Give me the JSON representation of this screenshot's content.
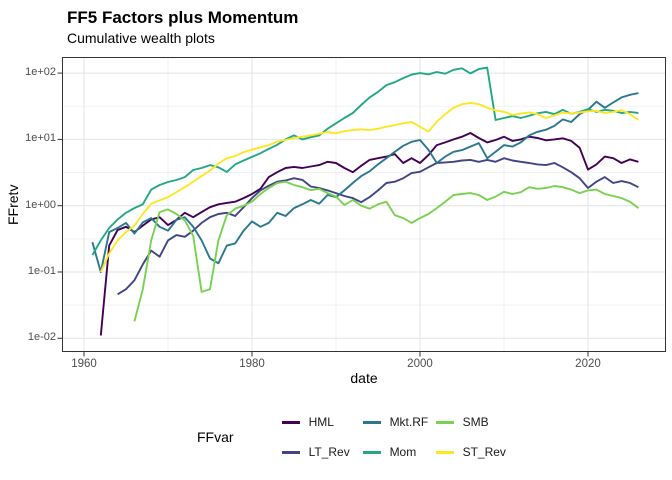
{
  "header": {
    "title": "FF5 Factors plus Momentum",
    "subtitle": "Cumulative wealth plots"
  },
  "legend": {
    "title": "FFvar",
    "rows": [
      [
        "HML",
        "Mkt.RF",
        "SMB"
      ],
      [
        "LT_Rev",
        "Mom",
        "ST_Rev"
      ]
    ]
  },
  "chart_data": {
    "type": "line",
    "title": "FF5 Factors plus Momentum",
    "subtitle": "Cumulative wealth plots",
    "xlabel": "date",
    "ylabel": "FFretv",
    "y_scale_type": "log10",
    "grid": {
      "major_color": "#e4e4e4",
      "minor_color": "#f2f2f2"
    },
    "panel_border_color": "#333333",
    "tick_color": "#333333",
    "xlim": [
      1957.38,
      2029.29
    ],
    "ylim_exp": [
      -2.207,
      2.243
    ],
    "x_ticks": [
      {
        "label": "1960",
        "year": 1960
      },
      {
        "label": "1980",
        "year": 1980
      },
      {
        "label": "2000",
        "year": 2000
      },
      {
        "label": "2020",
        "year": 2020
      }
    ],
    "x_minor": [
      1970,
      1990,
      2010
    ],
    "y_ticks": [
      {
        "label": "1e-02",
        "exp": -2
      },
      {
        "label": "1e-01",
        "exp": -1
      },
      {
        "label": "1e+00",
        "exp": 0
      },
      {
        "label": "1e+01",
        "exp": 1
      },
      {
        "label": "1e+02",
        "exp": 2
      }
    ],
    "y_minor_exp": [
      -1.5,
      -0.5,
      0.5,
      1.5
    ],
    "series": [
      {
        "name": "HML",
        "color": "#440154",
        "start_year": 1962,
        "values": [
          0.011,
          0.25,
          0.43,
          0.48,
          0.4,
          0.5,
          0.62,
          0.67,
          0.51,
          0.61,
          0.78,
          0.67,
          0.8,
          0.95,
          1.05,
          1.1,
          1.15,
          1.3,
          1.5,
          1.8,
          2.7,
          3.2,
          3.7,
          3.85,
          3.7,
          3.9,
          4.1,
          4.6,
          4.4,
          3.7,
          3.2,
          4.0,
          4.9,
          5.2,
          5.5,
          6.0,
          4.4,
          5.2,
          4.4,
          5.8,
          8.2,
          9.0,
          10.0,
          11.0,
          12.5,
          10.5,
          9.0,
          9.8,
          11.0,
          9.5,
          10.0,
          11.0,
          10.5,
          9.7,
          10.0,
          10.4,
          9.5,
          7.5,
          3.5,
          4.2,
          5.5,
          5.2,
          4.4,
          5.0,
          4.6
        ]
      },
      {
        "name": "LT_Rev",
        "color": "#414487",
        "start_year": 1964,
        "values": [
          0.046,
          0.055,
          0.075,
          0.13,
          0.21,
          0.17,
          0.3,
          0.36,
          0.34,
          0.42,
          0.55,
          0.67,
          0.75,
          0.78,
          0.7,
          0.95,
          1.3,
          1.7,
          2.0,
          2.3,
          2.4,
          2.6,
          2.45,
          1.95,
          1.85,
          1.7,
          1.55,
          1.4,
          1.3,
          1.13,
          1.35,
          1.7,
          2.2,
          2.3,
          2.6,
          3.1,
          3.25,
          3.8,
          4.4,
          4.5,
          4.6,
          4.8,
          4.9,
          4.6,
          4.9,
          4.6,
          5.2,
          4.8,
          4.6,
          4.4,
          4.2,
          4.1,
          4.4,
          3.8,
          3.2,
          2.6,
          1.85,
          2.3,
          2.7,
          2.2,
          2.35,
          2.2,
          1.9
        ]
      },
      {
        "name": "Mkt.RF",
        "color": "#2A788E",
        "start_year": 1961,
        "values": [
          0.28,
          0.1,
          0.4,
          0.46,
          0.55,
          0.38,
          0.56,
          0.65,
          0.48,
          0.42,
          0.61,
          0.67,
          0.48,
          0.3,
          0.16,
          0.135,
          0.25,
          0.27,
          0.42,
          0.58,
          0.48,
          0.55,
          0.78,
          0.7,
          0.92,
          1.05,
          1.22,
          1.07,
          1.45,
          1.35,
          1.7,
          2.2,
          2.8,
          3.3,
          4.2,
          5.2,
          6.5,
          8.0,
          9.2,
          9.8,
          7.0,
          4.4,
          5.5,
          6.5,
          6.9,
          7.8,
          8.8,
          5.2,
          6.5,
          8.2,
          7.8,
          9.0,
          11.5,
          13.0,
          14.0,
          16.0,
          20.0,
          18.3,
          24.0,
          28.0,
          37.0,
          30.0,
          36.0,
          43.0,
          47.0,
          50.0
        ]
      },
      {
        "name": "Mom",
        "color": "#22A884",
        "start_year": 1961,
        "values": [
          0.18,
          0.3,
          0.46,
          0.62,
          0.78,
          0.92,
          1.05,
          1.75,
          2.05,
          2.28,
          2.44,
          2.7,
          3.45,
          3.7,
          4.1,
          3.8,
          3.23,
          4.2,
          4.8,
          5.45,
          6.2,
          7.2,
          8.3,
          10.0,
          11.5,
          10.0,
          10.8,
          11.5,
          14.5,
          17.5,
          21.0,
          25.0,
          33.0,
          43.0,
          52.0,
          66.0,
          73.0,
          84.0,
          95.0,
          100,
          96.0,
          104,
          98.0,
          112,
          118,
          99.0,
          115,
          121,
          19.6,
          21.0,
          22.5,
          21.0,
          22.8,
          24.8,
          26.0,
          24.0,
          28.0,
          24.3,
          26.0,
          28.6,
          26.0,
          28.0,
          27.0,
          25.0,
          26.0,
          25.0
        ]
      },
      {
        "name": "SMB",
        "color": "#7AD151",
        "start_year": 1966,
        "values": [
          0.018,
          0.055,
          0.3,
          0.8,
          0.88,
          0.75,
          0.6,
          0.35,
          0.05,
          0.055,
          0.3,
          0.72,
          0.9,
          1.0,
          1.15,
          1.5,
          1.85,
          2.2,
          2.3,
          2.05,
          1.9,
          1.72,
          1.8,
          1.55,
          1.37,
          1.02,
          1.22,
          1.0,
          0.9,
          1.05,
          1.15,
          0.72,
          0.65,
          0.55,
          0.65,
          0.75,
          0.92,
          1.15,
          1.45,
          1.5,
          1.55,
          1.45,
          1.22,
          1.37,
          1.62,
          1.5,
          1.6,
          1.9,
          1.8,
          1.85,
          1.98,
          1.9,
          1.75,
          1.55,
          1.7,
          1.75,
          1.5,
          1.4,
          1.3,
          1.15,
          0.92
        ]
      },
      {
        "name": "ST_Rev",
        "color": "#FDE725",
        "start_year": 1962,
        "values": [
          0.1,
          0.19,
          0.3,
          0.4,
          0.5,
          0.75,
          1.07,
          1.2,
          1.35,
          1.6,
          1.9,
          2.3,
          2.8,
          3.4,
          4.3,
          5.2,
          5.6,
          6.4,
          7.0,
          7.6,
          8.2,
          9.3,
          9.8,
          10.5,
          11.0,
          11.5,
          12.2,
          12.9,
          12.4,
          13.3,
          13.8,
          14.2,
          13.8,
          14.5,
          15.5,
          16.5,
          17.5,
          18.3,
          15.5,
          13.1,
          18.5,
          24.0,
          30.0,
          34.0,
          35.5,
          34.0,
          30.0,
          27.5,
          26.0,
          23.4,
          24.5,
          25.5,
          24.0,
          21.0,
          23.0,
          25.5,
          24.5,
          25.5,
          26.5,
          27.0,
          25.0,
          26.0,
          27.6,
          24.0,
          19.6
        ]
      }
    ]
  }
}
